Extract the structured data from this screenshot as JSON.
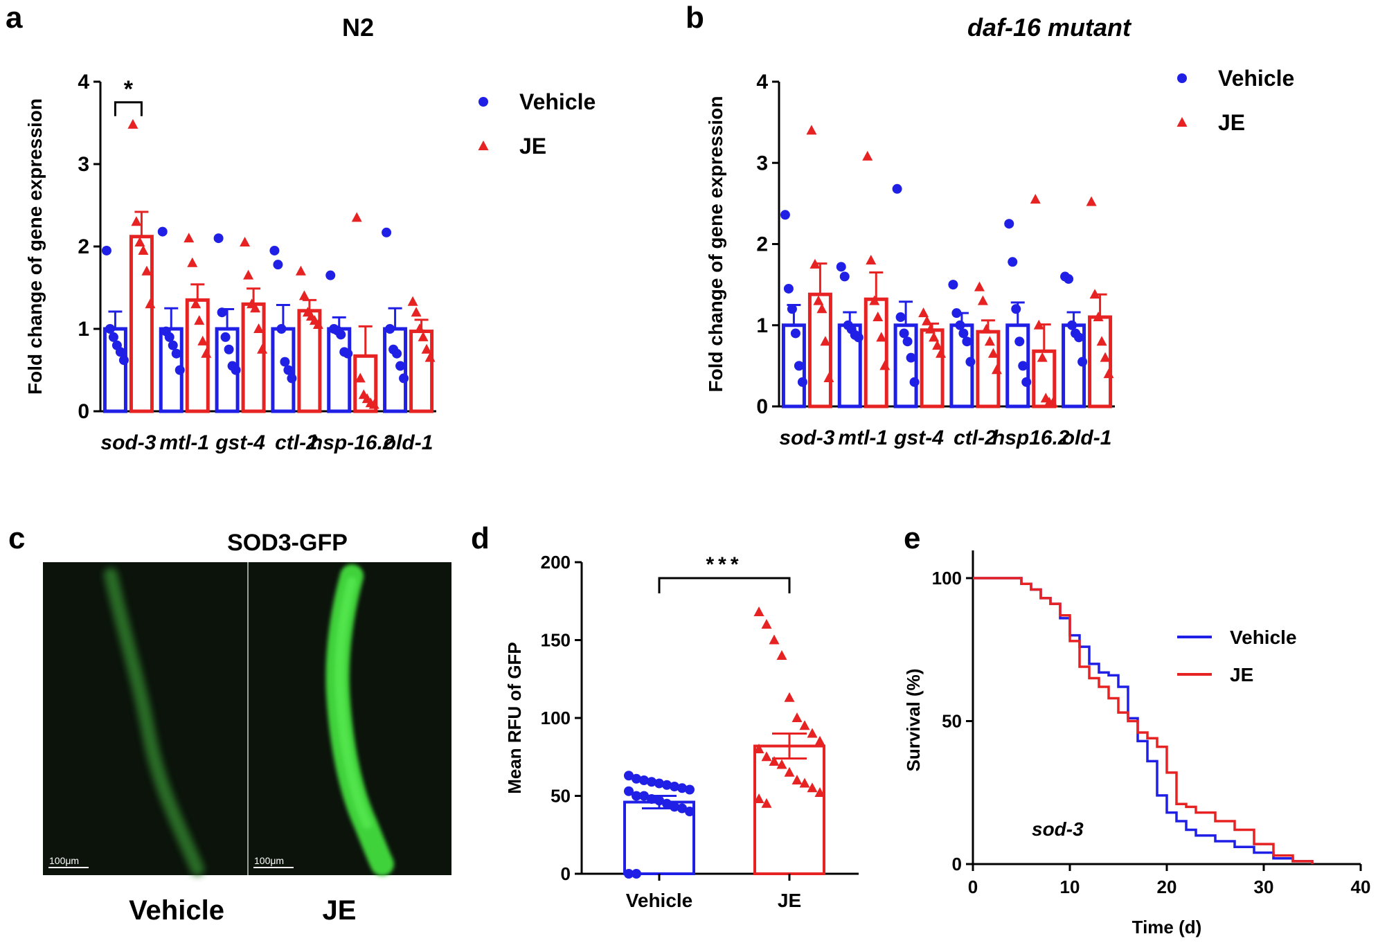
{
  "colors": {
    "vehicle": "#1f1fe6",
    "je": "#e62222",
    "axis": "#000000",
    "gfp_bg": "#0b130b"
  },
  "chart_data": [
    {
      "panel": "a",
      "type": "bar",
      "title": "N2",
      "ylabel": "Fold change of gene expression",
      "ylim": [
        0,
        4
      ],
      "yticks": [
        "0",
        "1",
        "2",
        "3",
        "4"
      ],
      "categories": [
        "sod-3",
        "mtl-1",
        "gst-4",
        "ctl-2",
        "hsp-16.2",
        "old-1"
      ],
      "legend": [
        "Vehicle",
        "JE"
      ],
      "legend_position": "top-right",
      "significance": [
        {
          "category": 0,
          "label": "*"
        }
      ],
      "series": [
        {
          "name": "Vehicle",
          "marker": "circle",
          "values": [
            1.0,
            1.0,
            1.0,
            1.0,
            1.0,
            1.0
          ],
          "sem": [
            0.21,
            0.25,
            0.24,
            0.29,
            0.14,
            0.25
          ],
          "points": [
            [
              1.95,
              1.0,
              0.9,
              0.8,
              0.72,
              0.62
            ],
            [
              2.18,
              0.97,
              0.9,
              0.8,
              0.7,
              0.5
            ],
            [
              2.1,
              1.2,
              0.9,
              0.75,
              0.55,
              0.5
            ],
            [
              1.95,
              1.78,
              1.0,
              0.6,
              0.5,
              0.4
            ],
            [
              1.65,
              1.0,
              0.98,
              0.93,
              0.72,
              0.7
            ],
            [
              2.17,
              1.0,
              0.75,
              0.7,
              0.55,
              0.4
            ]
          ]
        },
        {
          "name": "JE",
          "marker": "triangle",
          "values": [
            2.12,
            1.35,
            1.3,
            1.22,
            0.67,
            0.97
          ],
          "sem": [
            0.3,
            0.19,
            0.19,
            0.13,
            0.36,
            0.14
          ],
          "points": [
            [
              3.48,
              2.3,
              2.05,
              1.95,
              1.7,
              1.3
            ],
            [
              2.1,
              1.8,
              1.3,
              1.1,
              0.85,
              0.7
            ],
            [
              2.05,
              1.65,
              1.3,
              1.25,
              1.0,
              0.75
            ],
            [
              1.7,
              1.4,
              1.2,
              1.15,
              1.1,
              1.05
            ],
            [
              2.35,
              0.4,
              0.2,
              0.15,
              0.1,
              0.08
            ],
            [
              1.33,
              1.2,
              1.0,
              0.9,
              0.75,
              0.65
            ]
          ]
        }
      ]
    },
    {
      "panel": "b",
      "type": "bar",
      "title": "daf-16 mutant",
      "ylabel": "Fold change of gene expression",
      "ylim": [
        0,
        4
      ],
      "yticks": [
        "0",
        "1",
        "2",
        "3",
        "4"
      ],
      "categories": [
        "sod-3",
        "mtl-1",
        "gst-4",
        "ctl-2",
        "hsp16.2",
        "old-1"
      ],
      "legend": [
        "Vehicle",
        "JE"
      ],
      "legend_position": "top-right",
      "series": [
        {
          "name": "Vehicle",
          "marker": "circle",
          "values": [
            1.0,
            1.0,
            1.0,
            1.0,
            1.0,
            1.0
          ],
          "sem": [
            0.25,
            0.16,
            0.29,
            0.15,
            0.28,
            0.16
          ],
          "points": [
            [
              2.36,
              1.45,
              1.2,
              0.9,
              0.5,
              0.3
            ],
            [
              1.72,
              1.6,
              1.0,
              0.95,
              0.88,
              0.85
            ],
            [
              2.68,
              1.1,
              0.9,
              0.8,
              0.6,
              0.3
            ],
            [
              1.5,
              1.15,
              1.0,
              0.9,
              0.8,
              0.55
            ],
            [
              2.25,
              1.78,
              1.2,
              0.8,
              0.5,
              0.3
            ],
            [
              1.6,
              1.57,
              1.0,
              0.9,
              0.85,
              0.55
            ]
          ]
        },
        {
          "name": "JE",
          "marker": "triangle",
          "values": [
            1.38,
            1.32,
            0.94,
            0.92,
            0.68,
            1.1
          ],
          "sem": [
            0.38,
            0.33,
            0.08,
            0.14,
            0.33,
            0.28
          ],
          "points": [
            [
              3.4,
              1.75,
              1.3,
              1.2,
              0.8,
              0.35
            ],
            [
              3.08,
              1.8,
              1.3,
              1.1,
              0.85,
              0.5
            ],
            [
              1.15,
              1.05,
              0.95,
              0.85,
              0.75,
              0.65
            ],
            [
              1.47,
              1.3,
              0.95,
              0.8,
              0.65,
              0.45
            ],
            [
              2.55,
              1.0,
              0.6,
              0.1,
              0.05,
              0.04
            ],
            [
              2.52,
              1.38,
              1.1,
              0.8,
              0.6,
              0.4
            ]
          ]
        }
      ]
    },
    {
      "panel": "c",
      "type": "image",
      "title": "SOD3-GFP",
      "labels": [
        "Vehicle",
        "JE"
      ],
      "scale_bar": "100μm"
    },
    {
      "panel": "d",
      "type": "bar",
      "ylabel": "Mean RFU of GFP",
      "ylim": [
        0,
        200
      ],
      "yticks": [
        "0",
        "50",
        "100",
        "150",
        "200"
      ],
      "categories": [
        "Vehicle",
        "JE"
      ],
      "values": [
        46,
        82
      ],
      "sem": [
        4,
        8
      ],
      "significance": {
        "label": "***",
        "between": [
          0,
          1
        ]
      },
      "points": [
        [
          63,
          61,
          60,
          59,
          58,
          57,
          56,
          55,
          54,
          53,
          50,
          50,
          48,
          47,
          45,
          43,
          42,
          40,
          0,
          0
        ],
        [
          168,
          160,
          150,
          140,
          113,
          100,
          95,
          90,
          85,
          80,
          75,
          72,
          70,
          65,
          60,
          58,
          55,
          52,
          48,
          45
        ]
      ]
    },
    {
      "panel": "e",
      "type": "line",
      "step": true,
      "xlabel": "Time (d)",
      "ylabel": "Survival (%)",
      "xlim": [
        0,
        40
      ],
      "ylim": [
        0,
        100
      ],
      "xticks": [
        "0",
        "10",
        "20",
        "30",
        "40"
      ],
      "yticks": [
        "0",
        "50",
        "100"
      ],
      "annotation": "sod-3",
      "legend": [
        "Vehicle",
        "JE"
      ],
      "legend_position": "top-right",
      "series": [
        {
          "name": "Vehicle",
          "x": [
            0,
            4,
            5,
            6,
            7,
            8,
            9,
            10,
            11,
            12,
            13,
            14,
            15,
            16,
            17,
            18,
            19,
            20,
            21,
            22,
            23,
            25,
            27,
            29,
            31,
            33,
            35
          ],
          "y": [
            100,
            100,
            98,
            96,
            93,
            91,
            86,
            80,
            76,
            70,
            67,
            66,
            62,
            51,
            43,
            36,
            24,
            18,
            15,
            12,
            10,
            8,
            6,
            4,
            2,
            1,
            0
          ]
        },
        {
          "name": "JE",
          "x": [
            0,
            4,
            5,
            6,
            7,
            8,
            9,
            10,
            11,
            12,
            13,
            14,
            15,
            16,
            17,
            18,
            19,
            20,
            21,
            22,
            23,
            25,
            27,
            29,
            31,
            33,
            35
          ],
          "y": [
            100,
            100,
            98,
            96,
            93,
            91,
            87,
            78,
            69,
            65,
            62,
            58,
            53,
            50,
            46,
            44,
            41,
            32,
            21,
            20,
            18,
            15,
            12,
            7,
            3,
            1,
            0
          ]
        }
      ]
    }
  ]
}
